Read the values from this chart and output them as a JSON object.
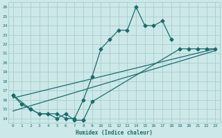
{
  "xlabel": "Humidex (Indice chaleur)",
  "bg_color": "#cce8e8",
  "grid_color": "#aacccc",
  "line_color": "#1a6b6b",
  "spine_color": "#aacccc",
  "xlim": [
    -0.5,
    23.5
  ],
  "ylim": [
    13.5,
    26.5
  ],
  "xticks": [
    0,
    1,
    2,
    3,
    4,
    5,
    6,
    7,
    8,
    9,
    10,
    11,
    12,
    13,
    14,
    15,
    16,
    17,
    18,
    19,
    20,
    21,
    22,
    23
  ],
  "yticks": [
    14,
    15,
    16,
    17,
    18,
    19,
    20,
    21,
    22,
    23,
    24,
    25,
    26
  ],
  "curve1_x": [
    0,
    1,
    2,
    3,
    4,
    5,
    6,
    7,
    8,
    9,
    10,
    11,
    12,
    13,
    14,
    15,
    16,
    17,
    18
  ],
  "curve1_y": [
    16.5,
    15.5,
    15.0,
    14.5,
    14.5,
    14.5,
    14.0,
    14.0,
    16.0,
    18.5,
    21.5,
    22.5,
    23.5,
    23.5,
    26.0,
    24.0,
    24.0,
    24.5,
    22.5
  ],
  "curve2a_x": [
    0,
    2,
    3,
    4,
    5,
    6,
    7,
    8
  ],
  "curve2a_y": [
    16.5,
    15.0,
    14.5,
    14.5,
    14.0,
    14.5,
    13.8,
    13.8
  ],
  "curve2b_x": [
    8,
    9,
    19,
    20,
    21,
    22,
    23
  ],
  "curve2b_y": [
    13.8,
    15.8,
    21.5,
    21.5,
    21.5,
    21.5,
    21.5
  ],
  "line1_x": [
    0,
    23
  ],
  "line1_y": [
    16.2,
    21.5
  ],
  "line2_x": [
    0,
    23
  ],
  "line2_y": [
    14.8,
    21.3
  ]
}
